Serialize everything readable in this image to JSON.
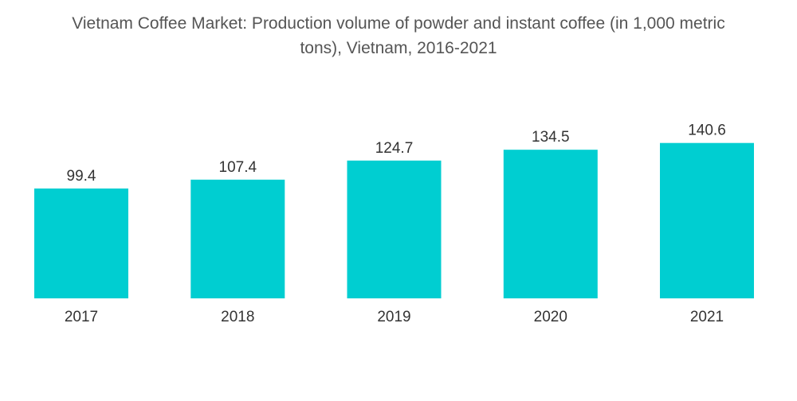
{
  "chart_data": {
    "type": "bar",
    "title_lines": [
      "Vietnam Coffee Market: Production volume of powder and instant coffee (in 1,000 metric",
      "tons), Vietnam, 2016-2021"
    ],
    "title": "Vietnam Coffee Market: Production volume of powder and instant coffee (in 1,000 metric tons), Vietnam, 2016-2021",
    "xlabel": "",
    "ylabel": "",
    "categories": [
      "2017",
      "2018",
      "2019",
      "2020",
      "2021"
    ],
    "values": [
      99.4,
      107.4,
      124.7,
      134.5,
      140.6
    ],
    "value_labels": [
      "99.4",
      "107.4",
      "124.7",
      "134.5",
      "140.6"
    ],
    "ylim": [
      0,
      270
    ],
    "grid": false,
    "legend": "none",
    "bar_color": "#00CED1"
  }
}
